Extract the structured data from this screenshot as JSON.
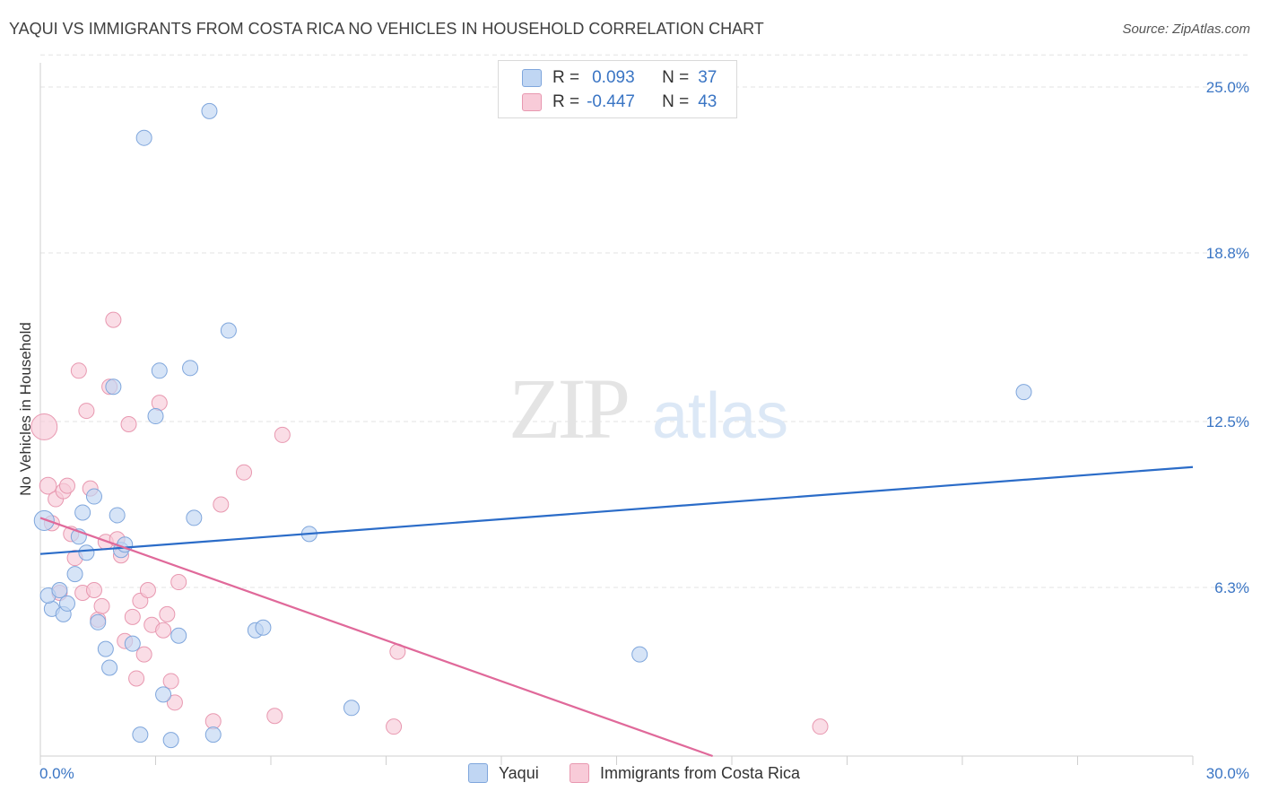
{
  "header": {
    "title": "YAQUI VS IMMIGRANTS FROM COSTA RICA NO VEHICLES IN HOUSEHOLD CORRELATION CHART",
    "source": "Source: ZipAtlas.com"
  },
  "watermark": {
    "zip": "ZIP",
    "atlas": "atlas"
  },
  "legend": {
    "rows": [
      {
        "r_label": "R =",
        "r_value": "0.093",
        "n_label": "N =",
        "n_value": "37"
      },
      {
        "r_label": "R =",
        "r_value": "-0.447",
        "n_label": "N =",
        "n_value": "43"
      }
    ]
  },
  "colors": {
    "yaqui_fill": "#c0d6f3",
    "yaqui_stroke": "#7fa6dc",
    "yaqui_line": "#2b6cc8",
    "costa_fill": "#f8cbd8",
    "costa_stroke": "#e898b0",
    "costa_line": "#e0699a",
    "tick_label": "#3a75c4",
    "grid": "#e3e3e3"
  },
  "chart_data": {
    "type": "scatter",
    "title": "YAQUI VS IMMIGRANTS FROM COSTA RICA NO VEHICLES IN HOUSEHOLD CORRELATION CHART",
    "xlabel": "",
    "ylabel": "No Vehicles in Household",
    "xlim": [
      0,
      30
    ],
    "ylim": [
      0,
      26
    ],
    "x_tick_labels": [
      "0.0%",
      "30.0%"
    ],
    "y_ticks": [
      6.3,
      12.5,
      18.8,
      25.0
    ],
    "y_tick_labels": [
      "6.3%",
      "12.5%",
      "18.8%",
      "25.0%"
    ],
    "legend_position": "top-center",
    "series": [
      {
        "name": "Yaqui",
        "r": 0.093,
        "n": 37,
        "trend": [
          [
            0,
            7.55
          ],
          [
            30,
            10.8
          ]
        ],
        "points": [
          [
            0.1,
            8.8,
            1.3
          ],
          [
            0.3,
            5.5,
            1
          ],
          [
            0.2,
            6.0,
            1
          ],
          [
            0.5,
            6.2,
            1
          ],
          [
            0.6,
            5.3,
            1
          ],
          [
            0.7,
            5.7,
            1
          ],
          [
            0.9,
            6.8,
            1
          ],
          [
            1.0,
            8.2,
            1
          ],
          [
            1.1,
            9.1,
            1
          ],
          [
            1.2,
            7.6,
            1
          ],
          [
            1.4,
            9.7,
            1
          ],
          [
            1.5,
            5.0,
            1
          ],
          [
            1.7,
            4.0,
            1
          ],
          [
            1.8,
            3.3,
            1
          ],
          [
            1.9,
            13.8,
            1
          ],
          [
            2.0,
            9.0,
            1
          ],
          [
            2.1,
            7.7,
            1
          ],
          [
            2.2,
            7.9,
            1
          ],
          [
            2.4,
            4.2,
            1
          ],
          [
            2.6,
            0.8,
            1
          ],
          [
            2.7,
            23.1,
            1
          ],
          [
            3.0,
            12.7,
            1
          ],
          [
            3.1,
            14.4,
            1
          ],
          [
            3.2,
            2.3,
            1
          ],
          [
            3.4,
            0.6,
            1
          ],
          [
            3.6,
            4.5,
            1
          ],
          [
            3.9,
            14.5,
            1
          ],
          [
            4.0,
            8.9,
            1
          ],
          [
            4.4,
            24.1,
            1
          ],
          [
            4.5,
            0.8,
            1
          ],
          [
            4.9,
            15.9,
            1
          ],
          [
            5.6,
            4.7,
            1
          ],
          [
            5.8,
            4.8,
            1
          ],
          [
            7.0,
            8.3,
            1
          ],
          [
            8.1,
            1.8,
            1
          ],
          [
            15.6,
            3.8,
            1
          ],
          [
            25.6,
            13.6,
            1
          ]
        ]
      },
      {
        "name": "Immigrants from Costa Rica",
        "r": -0.447,
        "n": 43,
        "trend": [
          [
            0,
            8.9
          ],
          [
            17.5,
            0
          ]
        ],
        "points": [
          [
            0.1,
            12.3,
            1.7
          ],
          [
            0.2,
            10.1,
            1.1
          ],
          [
            0.3,
            8.7,
            1
          ],
          [
            0.4,
            9.6,
            1
          ],
          [
            0.5,
            6.1,
            1
          ],
          [
            0.6,
            9.9,
            1
          ],
          [
            0.7,
            10.1,
            1
          ],
          [
            0.8,
            8.3,
            1
          ],
          [
            0.9,
            7.4,
            1
          ],
          [
            1.0,
            14.4,
            1
          ],
          [
            1.1,
            6.1,
            1
          ],
          [
            1.2,
            12.9,
            1
          ],
          [
            1.3,
            10.0,
            1
          ],
          [
            1.4,
            6.2,
            1
          ],
          [
            1.5,
            5.1,
            1
          ],
          [
            1.6,
            5.6,
            1
          ],
          [
            1.7,
            8.0,
            1
          ],
          [
            1.8,
            13.8,
            1
          ],
          [
            1.9,
            16.3,
            1
          ],
          [
            2.0,
            8.1,
            1
          ],
          [
            2.1,
            7.5,
            1
          ],
          [
            2.2,
            4.3,
            1
          ],
          [
            2.3,
            12.4,
            1
          ],
          [
            2.4,
            5.2,
            1
          ],
          [
            2.5,
            2.9,
            1
          ],
          [
            2.6,
            5.8,
            1
          ],
          [
            2.7,
            3.8,
            1
          ],
          [
            2.8,
            6.2,
            1
          ],
          [
            2.9,
            4.9,
            1
          ],
          [
            3.1,
            13.2,
            1
          ],
          [
            3.2,
            4.7,
            1
          ],
          [
            3.3,
            5.3,
            1
          ],
          [
            3.4,
            2.8,
            1
          ],
          [
            3.5,
            2.0,
            1
          ],
          [
            3.6,
            6.5,
            1
          ],
          [
            4.5,
            1.3,
            1
          ],
          [
            4.7,
            9.4,
            1
          ],
          [
            5.3,
            10.6,
            1
          ],
          [
            6.1,
            1.5,
            1
          ],
          [
            6.3,
            12.0,
            1
          ],
          [
            9.2,
            1.1,
            1
          ],
          [
            9.3,
            3.9,
            1
          ],
          [
            20.3,
            1.1,
            1
          ]
        ]
      }
    ]
  },
  "bottom_legend": {
    "items": [
      "Yaqui",
      "Immigrants from Costa Rica"
    ]
  }
}
